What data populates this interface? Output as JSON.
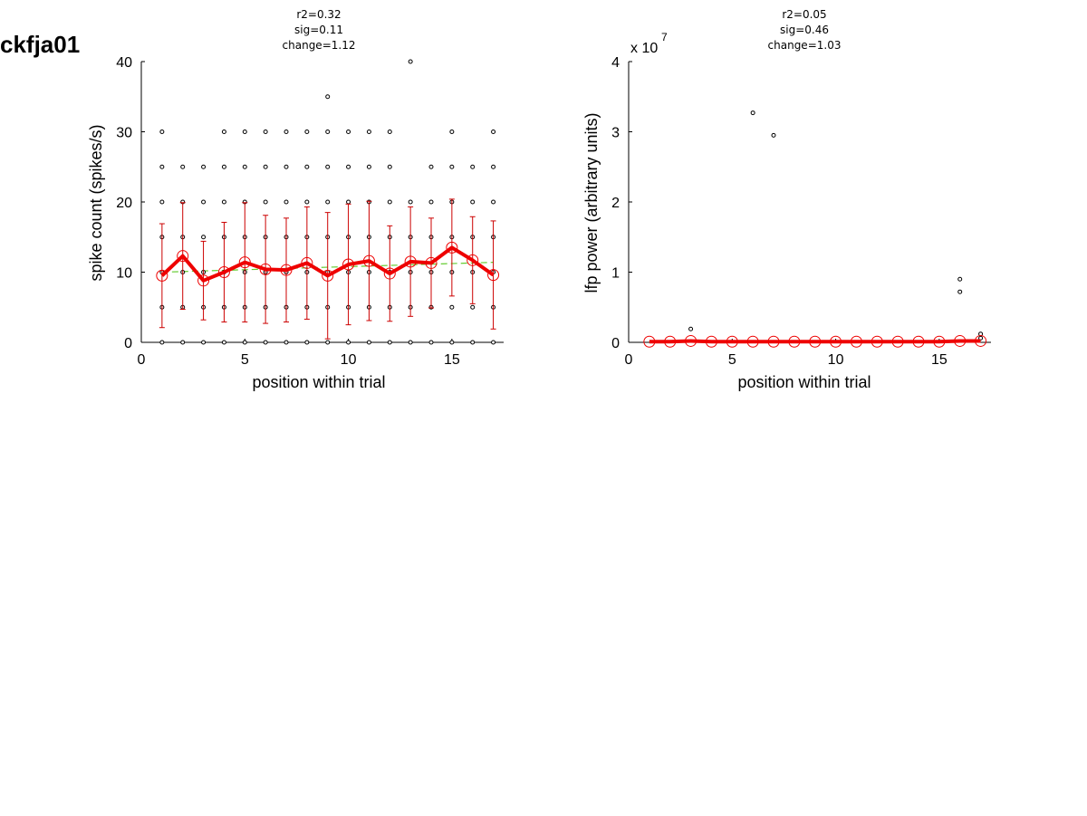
{
  "figure_title": "ckfja01",
  "chart_data": [
    {
      "type": "scatter",
      "title_lines": [
        "r2=0.32",
        "sig=0.11",
        "change=1.12"
      ],
      "xlabel": "position within trial",
      "ylabel": "spike count (spikes/s)",
      "xlim": [
        0,
        17.5
      ],
      "ylim": [
        0,
        40
      ],
      "xticks": [
        0,
        5,
        10,
        15
      ],
      "yticks": [
        0,
        10,
        20,
        30,
        40
      ],
      "grid": false,
      "colors": {
        "points": "#000000",
        "mean": "#ee0000",
        "errorbar": "#cc0000",
        "fit": "#66cc33"
      },
      "scatter_points": [
        {
          "x": 1,
          "ys": [
            0,
            5,
            10,
            15,
            20,
            25,
            30
          ]
        },
        {
          "x": 2,
          "ys": [
            0,
            5,
            10,
            15,
            20,
            25
          ]
        },
        {
          "x": 3,
          "ys": [
            0,
            5,
            10,
            15,
            20,
            25
          ]
        },
        {
          "x": 4,
          "ys": [
            0,
            5,
            10,
            15,
            20,
            25,
            30
          ]
        },
        {
          "x": 5,
          "ys": [
            0,
            5,
            10,
            15,
            20,
            25,
            30
          ]
        },
        {
          "x": 6,
          "ys": [
            0,
            5,
            10,
            15,
            20,
            25,
            30
          ]
        },
        {
          "x": 7,
          "ys": [
            0,
            5,
            10,
            15,
            20,
            25,
            30
          ]
        },
        {
          "x": 8,
          "ys": [
            0,
            5,
            10,
            15,
            20,
            25,
            30
          ]
        },
        {
          "x": 9,
          "ys": [
            0,
            5,
            10,
            15,
            20,
            25,
            30,
            35
          ]
        },
        {
          "x": 10,
          "ys": [
            0,
            5,
            10,
            15,
            20,
            25,
            30
          ]
        },
        {
          "x": 11,
          "ys": [
            0,
            5,
            10,
            15,
            20,
            25,
            30
          ]
        },
        {
          "x": 12,
          "ys": [
            0,
            5,
            10,
            15,
            20,
            25,
            30
          ]
        },
        {
          "x": 13,
          "ys": [
            0,
            5,
            10,
            15,
            20,
            40
          ]
        },
        {
          "x": 14,
          "ys": [
            0,
            5,
            10,
            15,
            20,
            25
          ]
        },
        {
          "x": 15,
          "ys": [
            0,
            5,
            10,
            15,
            20,
            25,
            30
          ]
        },
        {
          "x": 16,
          "ys": [
            0,
            5,
            10,
            15,
            20,
            25
          ]
        },
        {
          "x": 17,
          "ys": [
            0,
            5,
            10,
            15,
            20,
            25,
            30
          ]
        }
      ],
      "mean_series": {
        "x": [
          1,
          2,
          3,
          4,
          5,
          6,
          7,
          8,
          9,
          10,
          11,
          12,
          13,
          14,
          15,
          16,
          17
        ],
        "y": [
          9.5,
          12.3,
          8.8,
          10.0,
          11.4,
          10.4,
          10.3,
          11.3,
          9.5,
          11.1,
          11.6,
          9.8,
          11.5,
          11.3,
          13.5,
          11.7,
          9.6
        ],
        "err": [
          7.4,
          7.6,
          5.6,
          7.1,
          8.5,
          7.7,
          7.4,
          8.0,
          9.0,
          8.6,
          8.5,
          6.8,
          7.8,
          6.4,
          6.9,
          6.2,
          7.7
        ]
      },
      "fit_line": {
        "x": [
          1,
          17
        ],
        "y": [
          10.0,
          11.4
        ]
      }
    },
    {
      "type": "scatter",
      "title_lines": [
        "r2=0.05",
        "sig=0.46",
        "change=1.03"
      ],
      "xlabel": "position within trial",
      "ylabel": "lfp power (arbitrary units)",
      "y_multiplier_label": "x 10",
      "y_multiplier_exponent": "7",
      "xlim": [
        0,
        17.5
      ],
      "ylim": [
        0,
        4
      ],
      "xticks": [
        0,
        5,
        10,
        15
      ],
      "yticks": [
        0,
        1,
        2,
        3,
        4
      ],
      "grid": false,
      "colors": {
        "points": "#000000",
        "mean": "#ee0000",
        "fit": "#66cc33"
      },
      "scatter_points": [
        {
          "x": 3,
          "ys": [
            0.19
          ]
        },
        {
          "x": 6,
          "ys": [
            3.27
          ]
        },
        {
          "x": 7,
          "ys": [
            2.95
          ]
        },
        {
          "x": 16,
          "ys": [
            0.9,
            0.72
          ]
        },
        {
          "x": 17,
          "ys": [
            0.12,
            0.06
          ]
        }
      ],
      "mean_series": {
        "x": [
          1,
          2,
          3,
          4,
          5,
          6,
          7,
          8,
          9,
          10,
          11,
          12,
          13,
          14,
          15,
          16,
          17
        ],
        "y": [
          0.01,
          0.01,
          0.02,
          0.01,
          0.01,
          0.01,
          0.01,
          0.01,
          0.01,
          0.01,
          0.01,
          0.01,
          0.01,
          0.01,
          0.01,
          0.02,
          0.02
        ]
      },
      "fit_line": {
        "x": [
          1,
          17
        ],
        "y": [
          0.01,
          0.02
        ]
      }
    }
  ]
}
